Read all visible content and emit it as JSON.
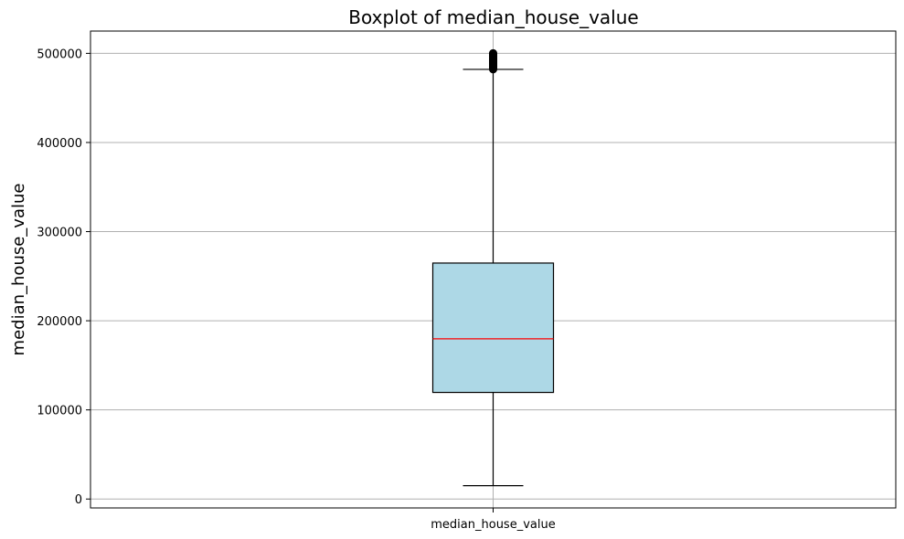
{
  "chart_data": {
    "type": "box",
    "title": "Boxplot of median_house_value",
    "xlabel": "",
    "ylabel": "median_house_value",
    "categories": [
      "median_house_value"
    ],
    "ylim": [
      -10000,
      525000
    ],
    "yticks": [
      0,
      100000,
      200000,
      300000,
      400000,
      500000
    ],
    "ytick_labels": [
      "0",
      "100000",
      "200000",
      "300000",
      "400000",
      "500000"
    ],
    "grid": true,
    "boxes": [
      {
        "name": "median_house_value",
        "whisker_low": 14999,
        "q1": 119600,
        "median": 179700,
        "q3": 264725,
        "whisker_high": 482000,
        "outliers": [
          482100,
          483000,
          484000,
          485000,
          486000,
          487000,
          488000,
          489000,
          490000,
          491000,
          492000,
          493000,
          494000,
          495000,
          496000,
          497000,
          498000,
          499000,
          500000,
          500001
        ]
      }
    ],
    "colors": {
      "box_fill": "#add8e6",
      "median_line": "#ff0000",
      "grid": "#b0b0b0",
      "stroke": "#000000"
    }
  }
}
